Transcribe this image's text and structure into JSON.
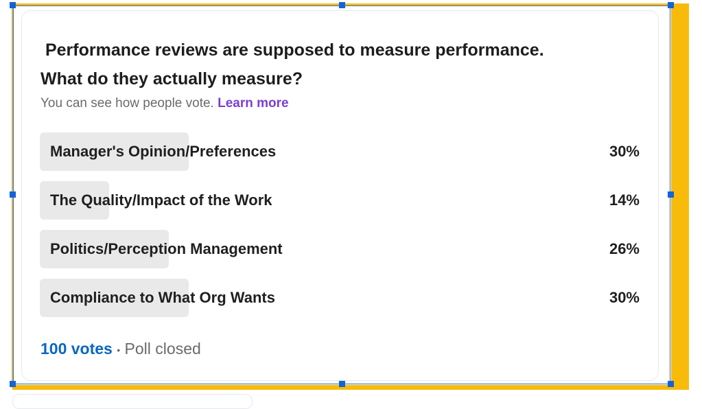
{
  "poll": {
    "question_line1": "Performance reviews are supposed to measure performance.",
    "question_line2": "What do they actually measure?",
    "visibility_note": "You can see how people vote.",
    "learn_more": "Learn more",
    "options": [
      {
        "label": "Manager's Opinion/Preferences",
        "percent_text": "30%",
        "percent": 30
      },
      {
        "label": "The Quality/Impact of the Work",
        "percent_text": "14%",
        "percent": 14
      },
      {
        "label": "Politics/Perception Management",
        "percent_text": "26%",
        "percent": 26
      },
      {
        "label": "Compliance to What Org Wants",
        "percent_text": "30%",
        "percent": 30
      }
    ],
    "votes": "100 votes",
    "separator": "•",
    "status": "Poll closed"
  },
  "colors": {
    "selection_highlight": "#f8bb0a",
    "selection_handles": "#1463d8",
    "link_votes": "#0a66c2",
    "link_learn_more": "#7b3fd1",
    "bar_fill": "#e9e9e9"
  }
}
